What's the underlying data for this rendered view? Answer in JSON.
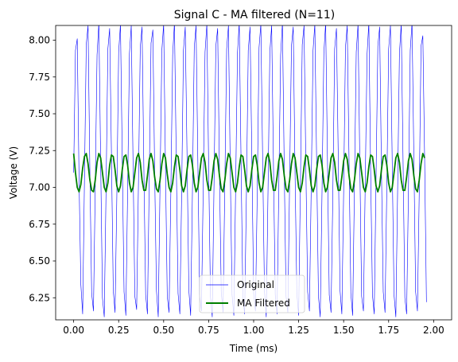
{
  "chart_data": {
    "type": "line",
    "title": "Signal C - MA filtered (N=11)",
    "xlabel": "Time (ms)",
    "ylabel": "Voltage (V)",
    "xlim": [
      -0.1,
      2.1
    ],
    "ylim": [
      6.1,
      8.1
    ],
    "x_ticks": [
      0.0,
      0.25,
      0.5,
      0.75,
      1.0,
      1.25,
      1.5,
      1.75,
      2.0
    ],
    "x_tick_labels": [
      "0.00",
      "0.25",
      "0.50",
      "0.75",
      "1.00",
      "1.25",
      "1.50",
      "1.75",
      "2.00"
    ],
    "y_ticks": [
      6.25,
      6.5,
      6.75,
      7.0,
      7.25,
      7.5,
      7.75,
      8.0
    ],
    "y_tick_labels": [
      "6.25",
      "6.50",
      "6.75",
      "7.00",
      "7.25",
      "7.50",
      "7.75",
      "8.00"
    ],
    "grid": false,
    "legend_position": "lower center",
    "series": [
      {
        "name": "Original",
        "color": "#0000ff",
        "line_width": "thin",
        "sampling_interval": 0.01,
        "values": [
          7.1,
          7.93,
          8.01,
          7.05,
          6.34,
          6.14,
          7.05,
          7.97,
          8.1,
          7.12,
          6.28,
          6.16,
          7.01,
          7.9,
          8.12,
          7.18,
          6.25,
          6.12,
          6.98,
          7.94,
          8.08,
          7.22,
          6.3,
          6.15,
          6.95,
          7.92,
          8.11,
          7.2,
          6.29,
          6.13,
          6.99,
          7.91,
          8.1,
          7.16,
          6.26,
          6.17,
          7.03,
          7.95,
          8.09,
          7.13,
          6.27,
          6.14,
          7.06,
          7.98,
          8.07,
          7.1,
          6.3,
          6.12,
          7.02,
          7.93,
          8.11,
          7.15,
          6.26,
          6.15,
          6.97,
          7.9,
          8.12,
          7.19,
          6.28,
          6.14,
          6.96,
          7.93,
          8.09,
          7.21,
          6.3,
          6.13,
          6.98,
          7.95,
          8.1,
          7.17,
          6.27,
          6.16,
          7.01,
          7.92,
          8.11,
          7.14,
          6.26,
          6.12,
          7.04,
          7.96,
          8.08,
          7.11,
          6.29,
          6.15,
          7.03,
          7.94,
          8.1,
          7.13,
          6.27,
          6.13,
          7.0,
          7.91,
          8.12,
          7.18,
          6.25,
          6.14,
          6.97,
          7.93,
          8.09,
          7.2,
          6.28,
          6.16,
          6.96,
          7.95,
          8.11,
          7.19,
          6.3,
          6.12,
          6.99,
          7.92,
          8.1,
          7.16,
          6.27,
          6.14,
          7.02,
          7.9,
          8.12,
          7.12,
          6.26,
          6.15,
          7.05,
          7.96,
          8.09,
          7.1,
          6.28,
          6.13,
          7.04,
          7.97,
          8.1,
          7.14,
          6.29,
          6.16,
          7.01,
          7.93,
          8.11,
          7.17,
          6.26,
          6.12,
          6.98,
          7.91,
          8.12,
          7.2,
          6.27,
          6.15,
          6.96,
          7.94,
          8.08,
          7.21,
          6.3,
          6.14,
          6.97,
          7.95,
          8.1,
          7.18,
          6.28,
          6.13,
          7.0,
          7.92,
          8.11,
          7.15,
          6.26,
          6.16,
          7.03,
          7.9,
          8.12,
          7.11,
          6.27,
          6.14,
          7.06,
          7.96,
          8.09,
          7.12,
          6.29,
          6.15,
          7.02,
          7.94,
          8.1,
          7.15,
          6.27,
          6.12,
          6.99,
          7.91,
          8.11,
          7.19,
          6.25,
          6.14,
          6.97,
          7.93,
          8.12,
          7.21,
          6.29,
          6.16,
          6.96,
          7.96,
          8.03,
          7.19,
          6.22
        ]
      },
      {
        "name": "MA Filtered",
        "color": "#008000",
        "line_width": "thick",
        "sampling_interval": 0.01,
        "values": [
          7.23,
          7.1,
          7.0,
          6.97,
          7.02,
          7.13,
          7.21,
          7.23,
          7.16,
          7.05,
          6.98,
          6.97,
          7.05,
          7.17,
          7.23,
          7.2,
          7.1,
          7.0,
          6.97,
          7.03,
          7.15,
          7.22,
          7.21,
          7.12,
          7.01,
          6.97,
          7.01,
          7.12,
          7.21,
          7.22,
          7.15,
          7.03,
          6.97,
          7.0,
          7.1,
          7.2,
          7.23,
          7.17,
          7.05,
          6.98,
          6.98,
          7.08,
          7.19,
          7.23,
          7.18,
          7.07,
          6.99,
          6.97,
          7.05,
          7.16,
          7.23,
          7.2,
          7.09,
          7.0,
          6.97,
          7.03,
          7.14,
          7.22,
          7.21,
          7.12,
          7.01,
          6.97,
          7.01,
          7.12,
          7.21,
          7.22,
          7.15,
          7.03,
          6.97,
          7.0,
          7.1,
          7.2,
          7.23,
          7.17,
          7.05,
          6.98,
          6.98,
          7.07,
          7.18,
          7.23,
          7.19,
          7.08,
          6.99,
          6.97,
          7.05,
          7.16,
          7.23,
          7.2,
          7.1,
          7.0,
          6.97,
          7.03,
          7.14,
          7.22,
          7.21,
          7.12,
          7.01,
          6.97,
          7.01,
          7.12,
          7.21,
          7.22,
          7.15,
          7.03,
          6.97,
          7.0,
          7.1,
          7.2,
          7.23,
          7.17,
          7.05,
          6.98,
          6.98,
          7.07,
          7.18,
          7.23,
          7.19,
          7.08,
          6.99,
          6.97,
          7.05,
          7.16,
          7.23,
          7.2,
          7.1,
          7.0,
          6.97,
          7.03,
          7.14,
          7.22,
          7.21,
          7.12,
          7.01,
          6.97,
          7.01,
          7.12,
          7.21,
          7.22,
          7.15,
          7.03,
          6.97,
          7.0,
          7.1,
          7.2,
          7.23,
          7.17,
          7.05,
          6.98,
          6.98,
          7.07,
          7.18,
          7.23,
          7.19,
          7.08,
          6.99,
          6.97,
          7.05,
          7.16,
          7.23,
          7.2,
          7.1,
          7.0,
          6.97,
          7.03,
          7.14,
          7.22,
          7.21,
          7.12,
          7.01,
          6.97,
          7.01,
          7.12,
          7.21,
          7.22,
          7.15,
          7.03,
          6.97,
          7.0,
          7.1,
          7.2,
          7.23,
          7.17,
          7.05,
          6.98,
          6.98,
          7.07,
          7.18,
          7.23,
          7.19,
          7.08,
          6.99,
          6.97,
          7.05,
          7.16,
          7.23,
          7.2
        ]
      }
    ]
  }
}
